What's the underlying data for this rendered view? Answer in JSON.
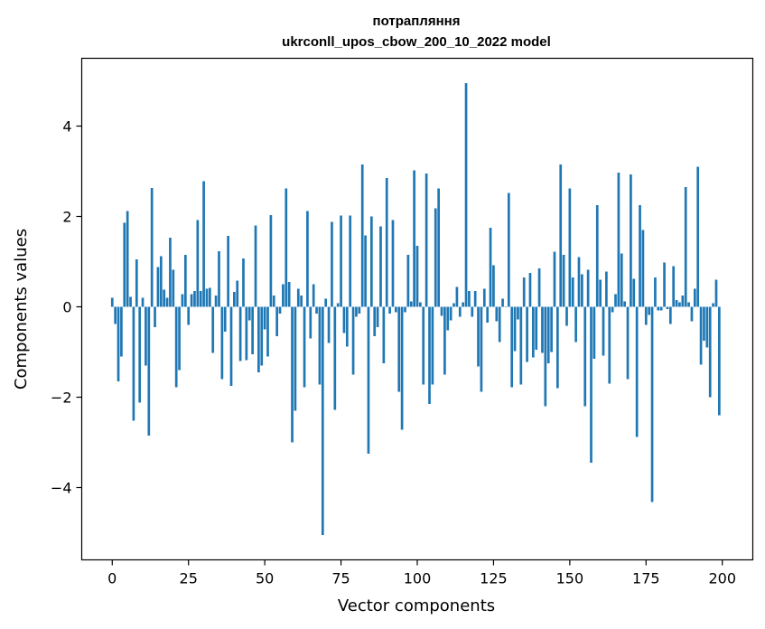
{
  "chart_data": {
    "type": "bar",
    "title_line1": "потрапляння",
    "title_line2": "ukrconll_upos_cbow_200_10_2022 model",
    "xlabel": "Vector components",
    "ylabel": "Components values",
    "xlim": [
      -10,
      210
    ],
    "ylim": [
      -5.6,
      5.5
    ],
    "xticks": [
      0,
      25,
      50,
      75,
      100,
      125,
      150,
      175,
      200
    ],
    "yticks": [
      -4,
      -2,
      0,
      2,
      4
    ],
    "ytick_labels": [
      "−4",
      "−2",
      "0",
      "2",
      "4"
    ],
    "grid": false,
    "bar_color": "#1f77b4",
    "x": [
      0,
      1,
      2,
      3,
      4,
      5,
      6,
      7,
      8,
      9,
      10,
      11,
      12,
      13,
      14,
      15,
      16,
      17,
      18,
      19,
      20,
      21,
      22,
      23,
      24,
      25,
      26,
      27,
      28,
      29,
      30,
      31,
      32,
      33,
      34,
      35,
      36,
      37,
      38,
      39,
      40,
      41,
      42,
      43,
      44,
      45,
      46,
      47,
      48,
      49,
      50,
      51,
      52,
      53,
      54,
      55,
      56,
      57,
      58,
      59,
      60,
      61,
      62,
      63,
      64,
      65,
      66,
      67,
      68,
      69,
      70,
      71,
      72,
      73,
      74,
      75,
      76,
      77,
      78,
      79,
      80,
      81,
      82,
      83,
      84,
      85,
      86,
      87,
      88,
      89,
      90,
      91,
      92,
      93,
      94,
      95,
      96,
      97,
      98,
      99,
      100,
      101,
      102,
      103,
      104,
      105,
      106,
      107,
      108,
      109,
      110,
      111,
      112,
      113,
      114,
      115,
      116,
      117,
      118,
      119,
      120,
      121,
      122,
      123,
      124,
      125,
      126,
      127,
      128,
      129,
      130,
      131,
      132,
      133,
      134,
      135,
      136,
      137,
      138,
      139,
      140,
      141,
      142,
      143,
      144,
      145,
      146,
      147,
      148,
      149,
      150,
      151,
      152,
      153,
      154,
      155,
      156,
      157,
      158,
      159,
      160,
      161,
      162,
      163,
      164,
      165,
      166,
      167,
      168,
      169,
      170,
      171,
      172,
      173,
      174,
      175,
      176,
      177,
      178,
      179,
      180,
      181,
      182,
      183,
      184,
      185,
      186,
      187,
      188,
      189,
      190,
      191,
      192,
      193,
      194,
      195,
      196,
      197,
      198,
      199
    ],
    "values": [
      0.2,
      -0.38,
      -1.65,
      -1.1,
      1.86,
      2.12,
      0.22,
      -2.52,
      1.05,
      -2.12,
      0.2,
      -1.3,
      -2.85,
      2.63,
      -0.45,
      0.88,
      1.12,
      0.38,
      0.2,
      1.53,
      0.82,
      -1.78,
      -1.4,
      0.28,
      1.15,
      -0.4,
      0.28,
      0.35,
      1.92,
      0.35,
      2.78,
      0.4,
      0.42,
      -1.02,
      0.25,
      1.23,
      -1.6,
      -0.55,
      1.57,
      -1.75,
      0.33,
      0.58,
      -1.2,
      1.07,
      -1.18,
      -0.3,
      -1.05,
      1.8,
      -1.45,
      -1.3,
      -0.5,
      -1.1,
      2.03,
      0.25,
      -0.65,
      -0.15,
      0.5,
      2.62,
      0.55,
      -3.0,
      -2.3,
      0.4,
      0.25,
      -1.78,
      2.12,
      -0.7,
      0.5,
      -0.15,
      -1.72,
      -5.05,
      0.18,
      -0.8,
      1.88,
      -2.28,
      0.08,
      2.02,
      -0.58,
      -0.88,
      2.02,
      -1.5,
      -0.22,
      -0.15,
      3.15,
      1.58,
      -3.25,
      2.0,
      -0.65,
      -0.45,
      1.78,
      -1.25,
      2.85,
      -0.15,
      1.92,
      -0.12,
      -1.88,
      -2.72,
      -0.12,
      1.15,
      0.12,
      3.02,
      1.35,
      0.1,
      -1.72,
      2.95,
      -2.15,
      -1.72,
      2.18,
      2.62,
      -0.2,
      -1.5,
      -0.52,
      -0.3,
      0.08,
      0.44,
      -0.22,
      0.1,
      4.95,
      0.35,
      -0.22,
      0.35,
      -1.32,
      -1.88,
      0.4,
      -0.35,
      1.75,
      0.92,
      -0.32,
      -0.78,
      0.18,
      0.0,
      2.52,
      -1.78,
      -0.98,
      -0.28,
      -1.72,
      0.65,
      -1.22,
      0.75,
      -1.12,
      -0.95,
      0.85,
      -1.02,
      -2.2,
      -1.25,
      -1.0,
      1.22,
      -1.8,
      3.15,
      1.15,
      -0.42,
      2.62,
      0.65,
      -0.78,
      1.1,
      0.72,
      -2.2,
      0.82,
      -3.45,
      -1.15,
      2.25,
      0.6,
      -1.08,
      0.78,
      -1.7,
      -0.12,
      0.28,
      2.97,
      1.18,
      0.12,
      -1.6,
      2.93,
      0.62,
      -2.88,
      2.25,
      1.7,
      -0.4,
      -0.18,
      -4.32,
      0.65,
      -0.08,
      -0.08,
      0.98,
      -0.05,
      -0.38,
      0.9,
      0.15,
      0.1,
      0.25,
      2.65,
      0.1,
      -0.32,
      0.4,
      3.1,
      -1.28,
      -0.75,
      -0.9,
      -2.0,
      0.08,
      0.6,
      -2.4
    ]
  }
}
